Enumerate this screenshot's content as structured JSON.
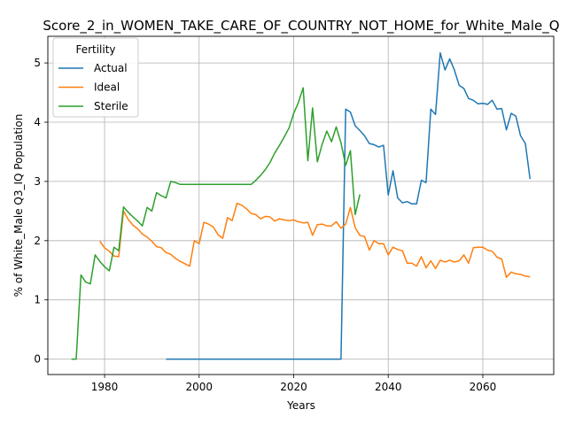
{
  "chart_data": {
    "type": "line",
    "title": "Score_2_in_WOMEN_TAKE_CARE_OF_COUNTRY_NOT_HOME_for_White_Male_Q",
    "xlabel": "Years",
    "ylabel": "% of White_Male Q3_IQ Population",
    "xlim": [
      1968,
      2075
    ],
    "ylim": [
      -0.26,
      5.45
    ],
    "xticks": [
      1980,
      2000,
      2020,
      2040,
      2060
    ],
    "yticks": [
      0,
      1,
      2,
      3,
      4,
      5
    ],
    "grid": true,
    "legend": {
      "title": "Fertility",
      "position": "top-left"
    },
    "series": [
      {
        "name": "Actual",
        "color": "#1f77b4",
        "x": [
          1993,
          2000,
          2010,
          2020,
          2025,
          2030,
          2031,
          2032,
          2033,
          2034,
          2035,
          2036,
          2037,
          2038,
          2039,
          2040,
          2041,
          2042,
          2043,
          2044,
          2045,
          2046,
          2047,
          2048,
          2049,
          2050,
          2051,
          2052,
          2053,
          2054,
          2055,
          2056,
          2057,
          2058,
          2059,
          2060,
          2061,
          2062,
          2063,
          2064,
          2065,
          2066,
          2067,
          2068,
          2069,
          2070
        ],
        "y": [
          0,
          0,
          0,
          0,
          0,
          0,
          4.22,
          4.17,
          3.94,
          3.86,
          3.77,
          3.64,
          3.62,
          3.58,
          3.61,
          2.77,
          3.18,
          2.72,
          2.64,
          2.66,
          2.62,
          2.62,
          3.02,
          2.98,
          4.22,
          4.13,
          5.17,
          4.88,
          5.07,
          4.88,
          4.62,
          4.57,
          4.4,
          4.37,
          4.31,
          4.32,
          4.3,
          4.37,
          4.22,
          4.23,
          3.87,
          4.15,
          4.1,
          3.77,
          3.64,
          3.04
        ]
      },
      {
        "name": "Ideal",
        "color": "#ff7f0e",
        "x": [
          1979,
          1980,
          1981,
          1982,
          1983,
          1984,
          1985,
          1986,
          1987,
          1988,
          1989,
          1990,
          1991,
          1992,
          1993,
          1994,
          1995,
          1996,
          1997,
          1998,
          1999,
          2000,
          2001,
          2002,
          2003,
          2004,
          2005,
          2006,
          2007,
          2008,
          2009,
          2010,
          2011,
          2012,
          2013,
          2014,
          2015,
          2016,
          2017,
          2018,
          2019,
          2020,
          2021,
          2022,
          2023,
          2024,
          2025,
          2026,
          2027,
          2028,
          2029,
          2030,
          2031,
          2032,
          2033,
          2034,
          2035,
          2036,
          2037,
          2038,
          2039,
          2040,
          2041,
          2042,
          2043,
          2044,
          2045,
          2046,
          2047,
          2048,
          2049,
          2050,
          2051,
          2052,
          2053,
          2054,
          2055,
          2056,
          2057,
          2058,
          2059,
          2060,
          2061,
          2062,
          2063,
          2064,
          2065,
          2066,
          2067,
          2068,
          2069,
          2070
        ],
        "y": [
          1.99,
          1.88,
          1.82,
          1.74,
          1.73,
          2.5,
          2.36,
          2.26,
          2.2,
          2.11,
          2.06,
          1.99,
          1.9,
          1.88,
          1.8,
          1.77,
          1.7,
          1.65,
          1.61,
          1.57,
          2.0,
          1.95,
          2.31,
          2.28,
          2.23,
          2.1,
          2.04,
          2.39,
          2.34,
          2.63,
          2.6,
          2.54,
          2.46,
          2.44,
          2.37,
          2.41,
          2.4,
          2.33,
          2.37,
          2.35,
          2.34,
          2.35,
          2.32,
          2.3,
          2.31,
          2.09,
          2.27,
          2.28,
          2.25,
          2.25,
          2.32,
          2.21,
          2.28,
          2.56,
          2.22,
          2.09,
          2.07,
          1.84,
          2.0,
          1.95,
          1.95,
          1.76,
          1.89,
          1.85,
          1.83,
          1.62,
          1.62,
          1.57,
          1.73,
          1.54,
          1.66,
          1.53,
          1.67,
          1.64,
          1.67,
          1.64,
          1.66,
          1.76,
          1.62,
          1.88,
          1.89,
          1.89,
          1.84,
          1.82,
          1.72,
          1.69,
          1.38,
          1.47,
          1.44,
          1.43,
          1.4,
          1.39
        ]
      },
      {
        "name": "Sterile",
        "color": "#2ca02c",
        "x": [
          1973,
          1974,
          1975,
          1976,
          1977,
          1978,
          1979,
          1980,
          1981,
          1982,
          1983,
          1984,
          1985,
          1986,
          1987,
          1988,
          1989,
          1990,
          1991,
          1992,
          1993,
          1994,
          1995,
          1996,
          1997,
          2000,
          2005,
          2010,
          2011,
          2012,
          2013,
          2014,
          2015,
          2016,
          2017,
          2018,
          2019,
          2020,
          2021,
          2022,
          2023,
          2024,
          2025,
          2026,
          2027,
          2028,
          2029,
          2030,
          2031,
          2032,
          2033,
          2034
        ],
        "y": [
          0,
          0,
          1.42,
          1.3,
          1.27,
          1.76,
          1.65,
          1.56,
          1.49,
          1.89,
          1.83,
          2.57,
          2.48,
          2.4,
          2.33,
          2.25,
          2.56,
          2.5,
          2.81,
          2.76,
          2.72,
          3.0,
          2.98,
          2.95,
          2.95,
          2.95,
          2.95,
          2.95,
          2.95,
          3.02,
          3.1,
          3.2,
          3.32,
          3.48,
          3.61,
          3.75,
          3.9,
          4.15,
          4.33,
          4.58,
          3.35,
          4.24,
          3.33,
          3.62,
          3.85,
          3.67,
          3.92,
          3.65,
          3.27,
          3.52,
          2.44,
          2.78
        ]
      }
    ]
  }
}
